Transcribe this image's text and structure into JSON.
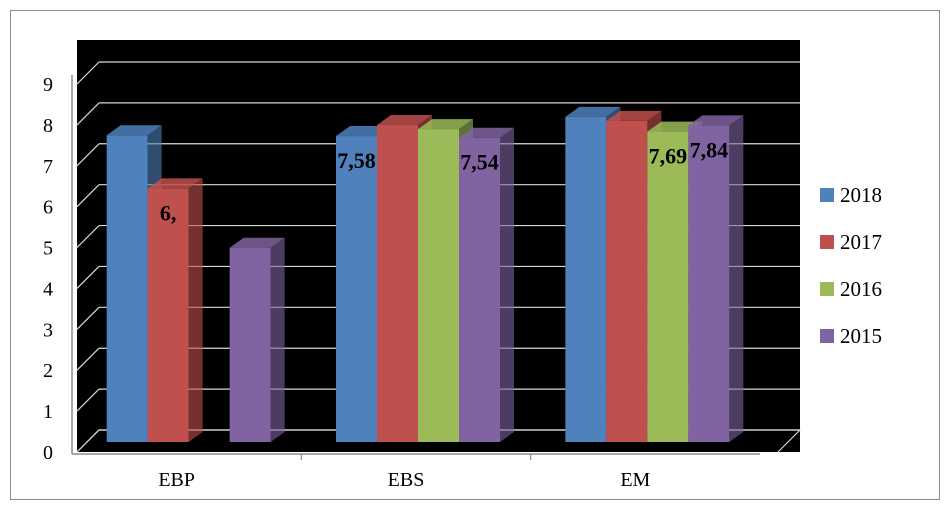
{
  "chart_data": {
    "type": "bar",
    "style": "3d-clustered-column",
    "categories": [
      "EBP",
      "EBS",
      "EM"
    ],
    "series": [
      {
        "name": "2018",
        "color": "#4f81bd",
        "values": [
          7.6,
          7.58,
          8.05
        ]
      },
      {
        "name": "2017",
        "color": "#c0504d",
        "values": [
          6.3,
          7.85,
          7.95
        ]
      },
      {
        "name": "2016",
        "color": "#9bbb59",
        "values": [
          null,
          7.75,
          7.69
        ]
      },
      {
        "name": "2015",
        "color": "#8064a2",
        "values": [
          4.85,
          7.54,
          7.84
        ]
      }
    ],
    "data_labels": [
      {
        "category": "EBP",
        "series": "2017",
        "text": "6,"
      },
      {
        "category": "EBS",
        "series": "2018",
        "text": "7,58"
      },
      {
        "category": "EBS",
        "series": "2015",
        "text": "7,54"
      },
      {
        "category": "EM",
        "series": "2016",
        "text": "7,69"
      },
      {
        "category": "EM",
        "series": "2015",
        "text": "7,84"
      }
    ],
    "ylim": [
      0,
      9
    ],
    "yticks": [
      0,
      1,
      2,
      3,
      4,
      5,
      6,
      7,
      8,
      9
    ],
    "grid": true,
    "legend": "right",
    "background": "#000000",
    "gridline_color": "#d9d9d9",
    "title": "",
    "xlabel": "",
    "ylabel": ""
  }
}
